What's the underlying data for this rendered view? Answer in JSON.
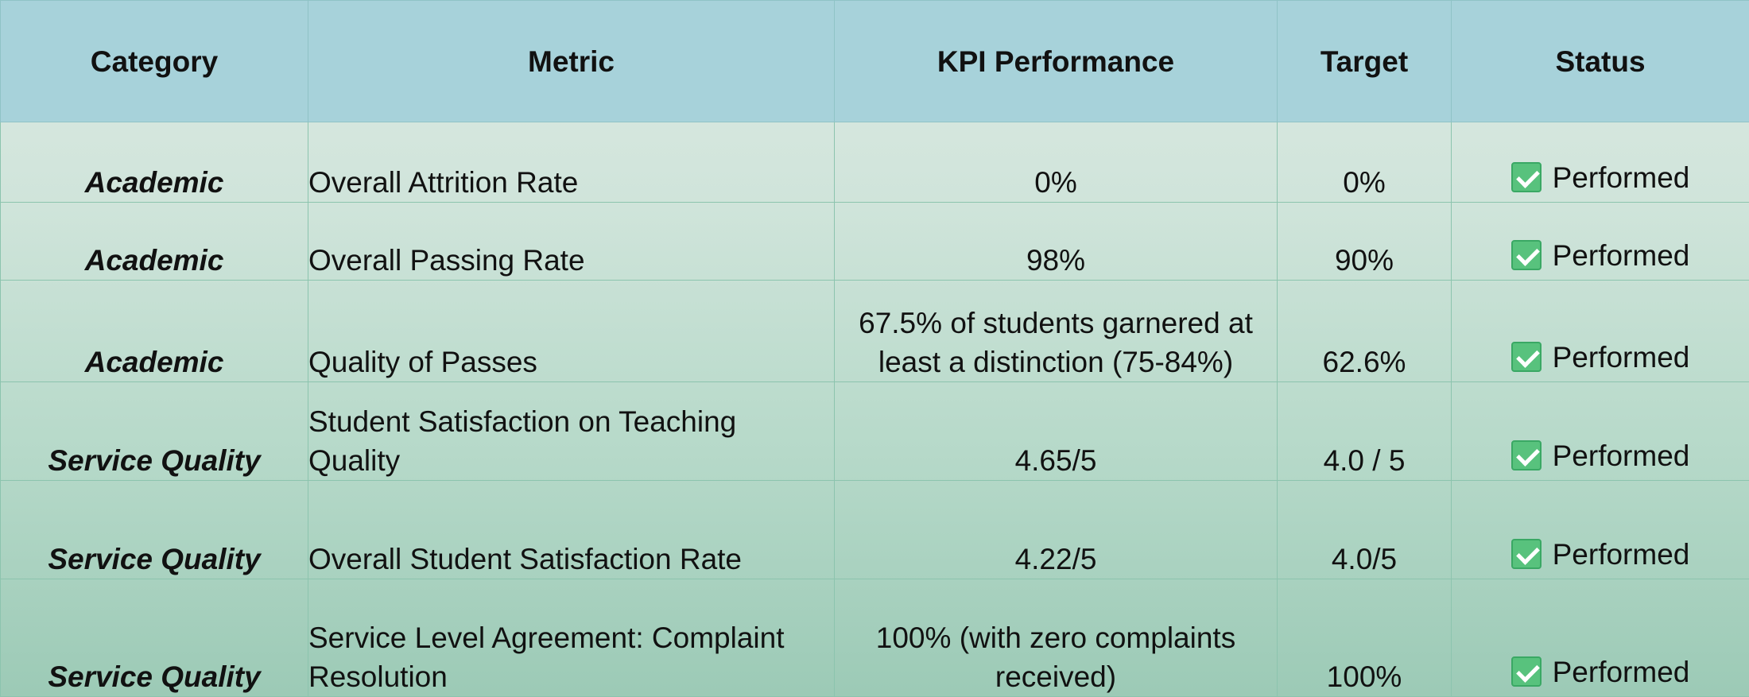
{
  "table": {
    "headers": [
      "Category",
      "Metric",
      "KPI Performance",
      "Target",
      "Status"
    ],
    "rows": [
      {
        "category": "Academic",
        "metric": "Overall Attrition Rate",
        "kpi": "0%",
        "target": "0%",
        "status": "Performed"
      },
      {
        "category": "Academic",
        "metric": "Overall Passing Rate",
        "kpi": "98%",
        "target": "90%",
        "status": "Performed"
      },
      {
        "category": "Academic",
        "metric": "Quality of Passes",
        "kpi": "67.5% of students garnered at least a distinction (75-84%)",
        "target": "62.6%",
        "status": "Performed"
      },
      {
        "category": "Service Quality",
        "metric": "Student Satisfaction on Teaching Quality",
        "kpi": "4.65/5",
        "target": "4.0 / 5",
        "status": "Performed"
      },
      {
        "category": "Service Quality",
        "metric": "Overall Student Satisfaction Rate",
        "kpi": "4.22/5",
        "target": "4.0/5",
        "status": "Performed"
      },
      {
        "category": "Service Quality",
        "metric": "Service Level Agreement: Complaint Resolution",
        "kpi": "100% (with zero complaints received)",
        "target": "100%",
        "status": "Performed"
      }
    ]
  },
  "icons": {
    "status_icon": "checkbox-checked-icon"
  },
  "colors": {
    "header_bg": "#a7d2da",
    "check_green": "#58c27d",
    "grid_line": "#8cc4ae"
  }
}
